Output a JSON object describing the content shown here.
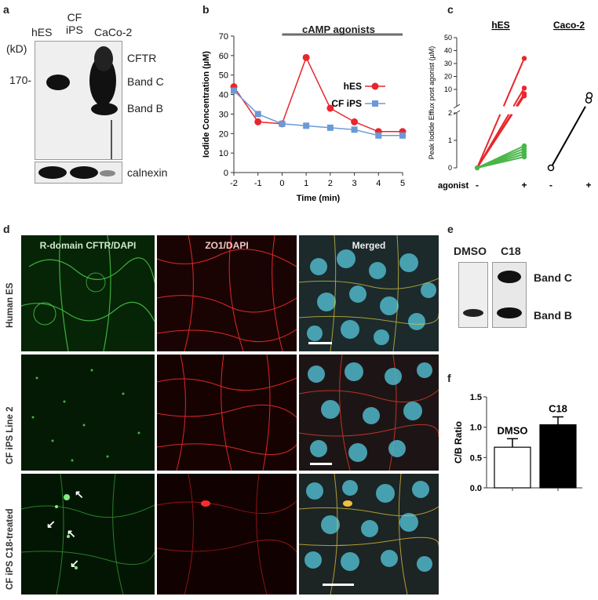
{
  "panel_a": {
    "letter": "a",
    "lanes": [
      "hES",
      "CF\niPS",
      "CaCo-2"
    ],
    "kd_unit": "(kD)",
    "marker": "170-",
    "band_labels": [
      "CFTR",
      "Band C",
      "Band B"
    ],
    "loading": "calnexin"
  },
  "panel_b": {
    "letter": "b",
    "annotation": "cAMP agonists"
  },
  "panel_c": {
    "letter": "c",
    "group1": "hES",
    "group2": "Caco-2",
    "xlabel": "agonist",
    "minus": "-",
    "plus": "+"
  },
  "panel_d": {
    "letter": "d",
    "columns": [
      "R-domain CFTR/DAPI",
      "ZO1/DAPI",
      "Merged"
    ],
    "rows": [
      "Human ES",
      "CF iPS Line 2",
      "CF iPS C18-treated"
    ]
  },
  "panel_e": {
    "letter": "e",
    "lanes": [
      "DMSO",
      "C18"
    ],
    "band_labels": [
      "Band C",
      "Band B"
    ]
  },
  "panel_f": {
    "letter": "f"
  },
  "colors": {
    "red": "#e8262c",
    "blue": "#6a9ad6",
    "green": "#49b649",
    "black": "#000000"
  },
  "chart_data": [
    {
      "type": "line",
      "title": "",
      "xlabel": "Time (min)",
      "ylabel": "Iodide Concentration (µM)",
      "x": [
        -2,
        -1,
        0,
        1,
        2,
        3,
        4,
        5
      ],
      "xlim": [
        -2,
        5
      ],
      "ylim": [
        0,
        70
      ],
      "yticks": [
        0,
        10,
        20,
        30,
        40,
        50,
        60,
        70
      ],
      "series": [
        {
          "name": "hES",
          "values": [
            44,
            26,
            25,
            59,
            33,
            26,
            21,
            21
          ]
        },
        {
          "name": "CF iPS",
          "values": [
            42,
            30,
            25,
            24,
            23,
            22,
            19,
            19
          ]
        }
      ],
      "legend": "right"
    },
    {
      "type": "line",
      "title": "",
      "ylabel": "Peak Iodide Efflux post agonist (µM)",
      "yticks": [
        "0",
        "1",
        "2",
        "10",
        "20",
        "30",
        "40",
        "50"
      ],
      "categories": [
        "-",
        "+"
      ],
      "hES_pairs_red": [
        [
          0,
          34
        ],
        [
          0,
          11
        ],
        [
          0,
          8
        ],
        [
          0,
          7
        ]
      ],
      "hES_pairs_green": [
        [
          0,
          0.8
        ],
        [
          0,
          0.7
        ],
        [
          0,
          0.6
        ],
        [
          0,
          0.5
        ],
        [
          0,
          0.4
        ]
      ],
      "caco2_pair": [
        0,
        5
      ]
    },
    {
      "type": "bar",
      "title": "",
      "xlabel": "",
      "ylabel": "C/B Ratio",
      "categories": [
        "DMSO",
        "C18"
      ],
      "values": [
        0.67,
        1.04
      ],
      "errors": [
        0.14,
        0.13
      ],
      "ylim": [
        0,
        1.5
      ],
      "yticks": [
        "0.0",
        "0.5",
        "1.0",
        "1.5"
      ]
    }
  ]
}
